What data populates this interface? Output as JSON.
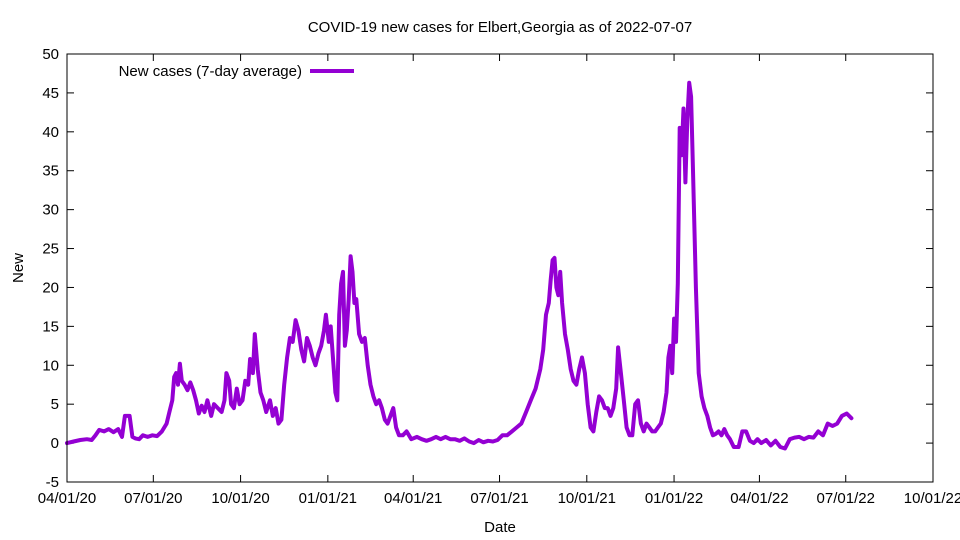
{
  "chart_data": {
    "type": "line",
    "title": "COVID-19 new cases for Elbert,Georgia as of 2022-07-07",
    "xlabel": "Date",
    "ylabel": "New",
    "x_tick_labels": [
      "04/01/20",
      "07/01/20",
      "10/01/20",
      "01/01/21",
      "04/01/21",
      "07/01/21",
      "10/01/21",
      "01/01/22",
      "04/01/22",
      "07/01/22",
      "10/01/22"
    ],
    "y_ticks": [
      -5,
      0,
      5,
      10,
      15,
      20,
      25,
      30,
      35,
      40,
      45,
      50
    ],
    "xlim": [
      "2020-04-01",
      "2022-10-01"
    ],
    "ylim": [
      -5,
      50
    ],
    "grid": false,
    "legend": {
      "position": "top-left",
      "entries": [
        "New cases (7-day average)"
      ]
    },
    "colors": {
      "series": "#9400d3",
      "axis": "#000000"
    },
    "series": [
      {
        "name": "New cases (7-day average)",
        "points": [
          [
            "2020-04-01",
            0.0
          ],
          [
            "2020-04-08",
            0.2
          ],
          [
            "2020-04-15",
            0.4
          ],
          [
            "2020-04-22",
            0.5
          ],
          [
            "2020-04-27",
            0.4
          ],
          [
            "2020-05-01",
            1.0
          ],
          [
            "2020-05-05",
            1.7
          ],
          [
            "2020-05-10",
            1.5
          ],
          [
            "2020-05-15",
            1.8
          ],
          [
            "2020-05-20",
            1.4
          ],
          [
            "2020-05-25",
            1.8
          ],
          [
            "2020-05-29",
            0.8
          ],
          [
            "2020-06-01",
            3.5
          ],
          [
            "2020-06-06",
            3.5
          ],
          [
            "2020-06-09",
            0.8
          ],
          [
            "2020-06-12",
            0.6
          ],
          [
            "2020-06-16",
            0.5
          ],
          [
            "2020-06-20",
            1.0
          ],
          [
            "2020-06-25",
            0.8
          ],
          [
            "2020-06-30",
            1.0
          ],
          [
            "2020-07-05",
            0.9
          ],
          [
            "2020-07-10",
            1.5
          ],
          [
            "2020-07-15",
            2.5
          ],
          [
            "2020-07-18",
            4.0
          ],
          [
            "2020-07-21",
            5.5
          ],
          [
            "2020-07-23",
            8.5
          ],
          [
            "2020-07-25",
            9.0
          ],
          [
            "2020-07-27",
            7.5
          ],
          [
            "2020-07-29",
            10.2
          ],
          [
            "2020-07-31",
            8.0
          ],
          [
            "2020-08-03",
            7.5
          ],
          [
            "2020-08-06",
            6.8
          ],
          [
            "2020-08-09",
            7.8
          ],
          [
            "2020-08-12",
            6.8
          ],
          [
            "2020-08-15",
            5.5
          ],
          [
            "2020-08-18",
            3.8
          ],
          [
            "2020-08-21",
            4.8
          ],
          [
            "2020-08-24",
            4.0
          ],
          [
            "2020-08-27",
            5.5
          ],
          [
            "2020-08-31",
            3.5
          ],
          [
            "2020-09-03",
            5.0
          ],
          [
            "2020-09-07",
            4.5
          ],
          [
            "2020-09-11",
            4.0
          ],
          [
            "2020-09-14",
            5.5
          ],
          [
            "2020-09-16",
            9.0
          ],
          [
            "2020-09-19",
            8.0
          ],
          [
            "2020-09-21",
            5.0
          ],
          [
            "2020-09-24",
            4.5
          ],
          [
            "2020-09-27",
            7.0
          ],
          [
            "2020-09-30",
            5.0
          ],
          [
            "2020-10-03",
            5.5
          ],
          [
            "2020-10-06",
            8.0
          ],
          [
            "2020-10-09",
            7.5
          ],
          [
            "2020-10-11",
            10.8
          ],
          [
            "2020-10-14",
            9.0
          ],
          [
            "2020-10-16",
            14.0
          ],
          [
            "2020-10-19",
            9.5
          ],
          [
            "2020-10-22",
            6.5
          ],
          [
            "2020-10-25",
            5.5
          ],
          [
            "2020-10-28",
            4.0
          ],
          [
            "2020-11-01",
            5.5
          ],
          [
            "2020-11-04",
            3.5
          ],
          [
            "2020-11-07",
            4.5
          ],
          [
            "2020-11-10",
            2.5
          ],
          [
            "2020-11-13",
            3.0
          ],
          [
            "2020-11-16",
            7.5
          ],
          [
            "2020-11-19",
            11.0
          ],
          [
            "2020-11-22",
            13.5
          ],
          [
            "2020-11-25",
            13.0
          ],
          [
            "2020-11-28",
            15.8
          ],
          [
            "2020-12-01",
            14.5
          ],
          [
            "2020-12-04",
            12.0
          ],
          [
            "2020-12-07",
            10.5
          ],
          [
            "2020-12-10",
            13.5
          ],
          [
            "2020-12-13",
            12.5
          ],
          [
            "2020-12-16",
            11.0
          ],
          [
            "2020-12-19",
            10.0
          ],
          [
            "2020-12-22",
            11.5
          ],
          [
            "2020-12-25",
            12.5
          ],
          [
            "2020-12-28",
            14.5
          ],
          [
            "2020-12-30",
            16.5
          ],
          [
            "2021-01-02",
            13.0
          ],
          [
            "2021-01-04",
            15.0
          ],
          [
            "2021-01-07",
            10.0
          ],
          [
            "2021-01-09",
            6.5
          ],
          [
            "2021-01-11",
            5.5
          ],
          [
            "2021-01-13",
            16.5
          ],
          [
            "2021-01-15",
            20.5
          ],
          [
            "2021-01-17",
            22.0
          ],
          [
            "2021-01-19",
            12.5
          ],
          [
            "2021-01-21",
            14.5
          ],
          [
            "2021-01-23",
            18.5
          ],
          [
            "2021-01-25",
            24.0
          ],
          [
            "2021-01-27",
            22.0
          ],
          [
            "2021-01-29",
            18.0
          ],
          [
            "2021-01-31",
            18.5
          ],
          [
            "2021-02-03",
            14.0
          ],
          [
            "2021-02-06",
            13.0
          ],
          [
            "2021-02-09",
            13.5
          ],
          [
            "2021-02-12",
            10.0
          ],
          [
            "2021-02-15",
            7.5
          ],
          [
            "2021-02-18",
            6.0
          ],
          [
            "2021-02-21",
            5.0
          ],
          [
            "2021-02-24",
            5.5
          ],
          [
            "2021-02-27",
            4.5
          ],
          [
            "2021-03-02",
            3.0
          ],
          [
            "2021-03-05",
            2.5
          ],
          [
            "2021-03-08",
            3.5
          ],
          [
            "2021-03-11",
            4.5
          ],
          [
            "2021-03-14",
            2.0
          ],
          [
            "2021-03-17",
            1.0
          ],
          [
            "2021-03-21",
            1.0
          ],
          [
            "2021-03-25",
            1.5
          ],
          [
            "2021-03-30",
            0.5
          ],
          [
            "2021-04-05",
            0.8
          ],
          [
            "2021-04-10",
            0.5
          ],
          [
            "2021-04-15",
            0.3
          ],
          [
            "2021-04-20",
            0.5
          ],
          [
            "2021-04-25",
            0.8
          ],
          [
            "2021-04-30",
            0.5
          ],
          [
            "2021-05-05",
            0.8
          ],
          [
            "2021-05-10",
            0.5
          ],
          [
            "2021-05-15",
            0.5
          ],
          [
            "2021-05-20",
            0.3
          ],
          [
            "2021-05-25",
            0.6
          ],
          [
            "2021-05-30",
            0.2
          ],
          [
            "2021-06-04",
            0.0
          ],
          [
            "2021-06-09",
            0.4
          ],
          [
            "2021-06-14",
            0.1
          ],
          [
            "2021-06-19",
            0.3
          ],
          [
            "2021-06-24",
            0.2
          ],
          [
            "2021-06-29",
            0.4
          ],
          [
            "2021-07-04",
            1.0
          ],
          [
            "2021-07-09",
            1.0
          ],
          [
            "2021-07-14",
            1.5
          ],
          [
            "2021-07-19",
            2.0
          ],
          [
            "2021-07-24",
            2.5
          ],
          [
            "2021-07-29",
            4.0
          ],
          [
            "2021-08-03",
            5.5
          ],
          [
            "2021-08-08",
            7.0
          ],
          [
            "2021-08-13",
            9.5
          ],
          [
            "2021-08-16",
            12.0
          ],
          [
            "2021-08-19",
            16.5
          ],
          [
            "2021-08-22",
            18.0
          ],
          [
            "2021-08-24",
            21.0
          ],
          [
            "2021-08-26",
            23.5
          ],
          [
            "2021-08-28",
            23.8
          ],
          [
            "2021-08-30",
            20.0
          ],
          [
            "2021-09-01",
            19.0
          ],
          [
            "2021-09-03",
            22.0
          ],
          [
            "2021-09-05",
            18.0
          ],
          [
            "2021-09-08",
            14.0
          ],
          [
            "2021-09-11",
            12.0
          ],
          [
            "2021-09-14",
            9.5
          ],
          [
            "2021-09-17",
            8.0
          ],
          [
            "2021-09-20",
            7.5
          ],
          [
            "2021-09-23",
            9.5
          ],
          [
            "2021-09-26",
            11.0
          ],
          [
            "2021-09-29",
            9.0
          ],
          [
            "2021-10-02",
            5.0
          ],
          [
            "2021-10-05",
            2.0
          ],
          [
            "2021-10-08",
            1.5
          ],
          [
            "2021-10-11",
            4.0
          ],
          [
            "2021-10-14",
            6.0
          ],
          [
            "2021-10-17",
            5.5
          ],
          [
            "2021-10-20",
            4.5
          ],
          [
            "2021-10-23",
            4.5
          ],
          [
            "2021-10-26",
            3.5
          ],
          [
            "2021-10-29",
            4.5
          ],
          [
            "2021-11-01",
            7.0
          ],
          [
            "2021-11-03",
            12.3
          ],
          [
            "2021-11-06",
            9.0
          ],
          [
            "2021-11-09",
            5.5
          ],
          [
            "2021-11-12",
            2.0
          ],
          [
            "2021-11-15",
            1.0
          ],
          [
            "2021-11-18",
            1.0
          ],
          [
            "2021-11-21",
            5.0
          ],
          [
            "2021-11-24",
            5.5
          ],
          [
            "2021-11-27",
            2.5
          ],
          [
            "2021-11-30",
            1.5
          ],
          [
            "2021-12-03",
            2.5
          ],
          [
            "2021-12-06",
            2.0
          ],
          [
            "2021-12-09",
            1.5
          ],
          [
            "2021-12-12",
            1.5
          ],
          [
            "2021-12-15",
            2.0
          ],
          [
            "2021-12-18",
            2.5
          ],
          [
            "2021-12-21",
            4.0
          ],
          [
            "2021-12-24",
            6.5
          ],
          [
            "2021-12-26",
            11.0
          ],
          [
            "2021-12-28",
            12.5
          ],
          [
            "2021-12-30",
            9.0
          ],
          [
            "2022-01-01",
            16.0
          ],
          [
            "2022-01-03",
            13.0
          ],
          [
            "2022-01-05",
            20.5
          ],
          [
            "2022-01-07",
            40.5
          ],
          [
            "2022-01-09",
            37.0
          ],
          [
            "2022-01-11",
            43.0
          ],
          [
            "2022-01-13",
            33.5
          ],
          [
            "2022-01-15",
            41.5
          ],
          [
            "2022-01-17",
            46.3
          ],
          [
            "2022-01-19",
            44.5
          ],
          [
            "2022-01-21",
            35.0
          ],
          [
            "2022-01-24",
            20.0
          ],
          [
            "2022-01-27",
            9.0
          ],
          [
            "2022-01-30",
            6.0
          ],
          [
            "2022-02-02",
            4.5
          ],
          [
            "2022-02-05",
            3.5
          ],
          [
            "2022-02-08",
            2.0
          ],
          [
            "2022-02-11",
            1.0
          ],
          [
            "2022-02-14",
            1.2
          ],
          [
            "2022-02-17",
            1.5
          ],
          [
            "2022-02-20",
            1.0
          ],
          [
            "2022-02-23",
            1.8
          ],
          [
            "2022-02-26",
            1.0
          ],
          [
            "2022-03-01",
            0.5
          ],
          [
            "2022-03-05",
            -0.5
          ],
          [
            "2022-03-10",
            -0.5
          ],
          [
            "2022-03-14",
            1.5
          ],
          [
            "2022-03-18",
            1.5
          ],
          [
            "2022-03-22",
            0.3
          ],
          [
            "2022-03-26",
            0.0
          ],
          [
            "2022-03-30",
            0.5
          ],
          [
            "2022-04-03",
            0.0
          ],
          [
            "2022-04-08",
            0.4
          ],
          [
            "2022-04-13",
            -0.3
          ],
          [
            "2022-04-18",
            0.3
          ],
          [
            "2022-04-23",
            -0.5
          ],
          [
            "2022-04-28",
            -0.7
          ],
          [
            "2022-05-03",
            0.5
          ],
          [
            "2022-05-08",
            0.7
          ],
          [
            "2022-05-13",
            0.8
          ],
          [
            "2022-05-18",
            0.5
          ],
          [
            "2022-05-23",
            0.8
          ],
          [
            "2022-05-28",
            0.7
          ],
          [
            "2022-06-02",
            1.5
          ],
          [
            "2022-06-07",
            1.0
          ],
          [
            "2022-06-12",
            2.5
          ],
          [
            "2022-06-17",
            2.2
          ],
          [
            "2022-06-22",
            2.5
          ],
          [
            "2022-06-27",
            3.5
          ],
          [
            "2022-07-02",
            3.8
          ],
          [
            "2022-07-07",
            3.2
          ]
        ]
      }
    ]
  }
}
